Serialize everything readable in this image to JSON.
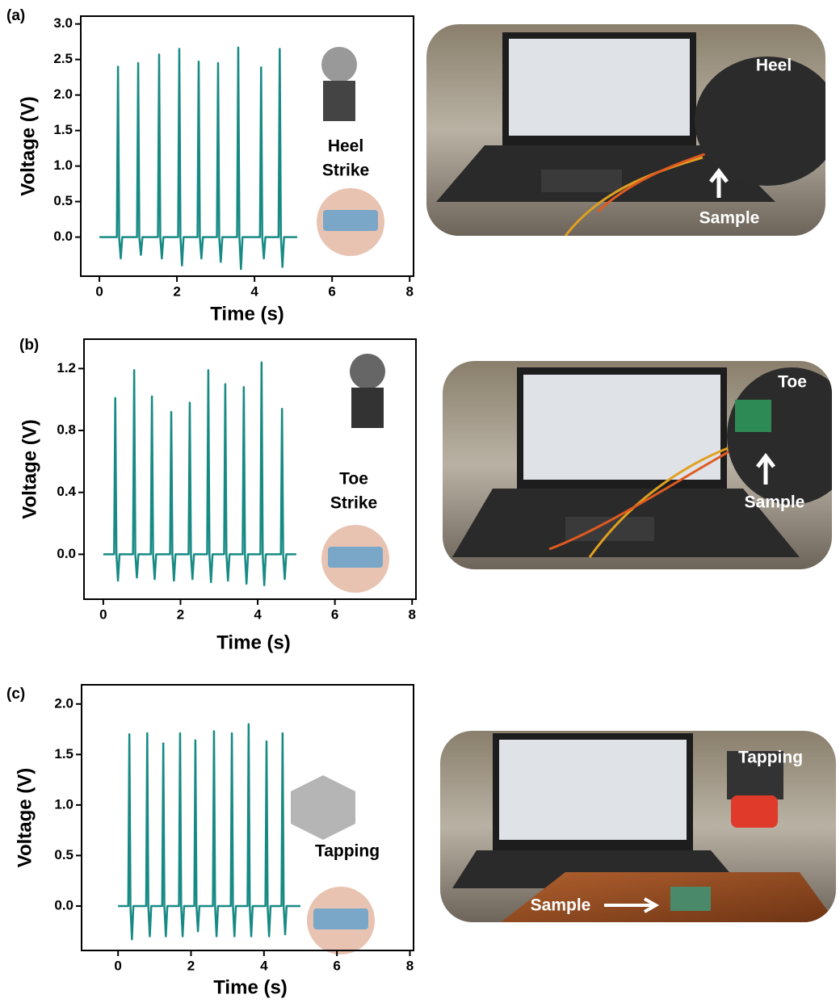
{
  "chart_data": [
    {
      "type": "line",
      "panel_label": "(a)",
      "x_label": "Time (s)",
      "y_label": "Voltage (V)",
      "annotation": [
        "Heel",
        "Strike"
      ],
      "photo_labels": [
        "Heel",
        "Sample"
      ],
      "xlim": [
        -0.48,
        8.1
      ],
      "ylim": [
        -0.55,
        3.11
      ],
      "xticks": [
        0,
        2,
        4,
        6,
        8
      ],
      "yticks": [
        {
          "value": 0,
          "label": "0.0"
        },
        {
          "value": 0.5,
          "label": "0.5"
        },
        {
          "value": 1,
          "label": "1.0"
        },
        {
          "value": 1.5,
          "label": "1.5"
        },
        {
          "value": 2,
          "label": "2.0"
        },
        {
          "value": 2.5,
          "label": "2.5"
        },
        {
          "value": 3,
          "label": "3.0"
        }
      ],
      "series": [
        {
          "color": "#178a84",
          "x": [
            0,
            0.45,
            0.48,
            0.51,
            0.55,
            0.59,
            0.97,
            1.0,
            1.03,
            1.07,
            1.11,
            1.51,
            1.54,
            1.57,
            1.61,
            1.65,
            2.03,
            2.06,
            2.09,
            2.13,
            2.17,
            2.53,
            2.56,
            2.59,
            2.63,
            2.67,
            3.03,
            3.06,
            3.09,
            3.13,
            3.17,
            3.55,
            3.58,
            3.61,
            3.65,
            3.69,
            4.14,
            4.17,
            4.2,
            4.24,
            4.28,
            4.62,
            4.65,
            4.68,
            4.72,
            4.76,
            5.1
          ],
          "values": [
            0,
            0,
            2.4,
            0,
            -0.3,
            0,
            0,
            2.45,
            0,
            -0.25,
            0,
            0,
            2.57,
            0,
            -0.3,
            0,
            0,
            2.65,
            0,
            -0.4,
            0,
            0,
            2.47,
            0,
            -0.3,
            0,
            0,
            2.45,
            0,
            -0.35,
            0,
            0,
            2.67,
            0,
            -0.45,
            0,
            0,
            2.39,
            0,
            -0.3,
            0,
            0,
            2.65,
            0,
            -0.42,
            0,
            0
          ]
        }
      ]
    },
    {
      "type": "line",
      "panel_label": "(b)",
      "x_label": "Time (s)",
      "y_label": "Voltage (V)",
      "annotation": [
        "Toe",
        "Strike"
      ],
      "photo_labels": [
        "Toe",
        "Sample"
      ],
      "xlim": [
        -0.5,
        8.1
      ],
      "ylim": [
        -0.29,
        1.39
      ],
      "xticks": [
        0,
        2,
        4,
        6,
        8
      ],
      "yticks": [
        {
          "value": 0,
          "label": "0.0"
        },
        {
          "value": 0.4,
          "label": "0.4"
        },
        {
          "value": 0.8,
          "label": "0.8"
        },
        {
          "value": 1.2,
          "label": "1.2"
        }
      ],
      "series": [
        {
          "color": "#178a84",
          "x": [
            0,
            0.28,
            0.31,
            0.34,
            0.38,
            0.42,
            0.77,
            0.8,
            0.83,
            0.87,
            0.91,
            1.23,
            1.26,
            1.29,
            1.33,
            1.37,
            1.73,
            1.76,
            1.79,
            1.83,
            1.87,
            2.21,
            2.24,
            2.27,
            2.31,
            2.35,
            2.69,
            2.72,
            2.75,
            2.79,
            2.83,
            3.13,
            3.16,
            3.19,
            3.23,
            3.27,
            3.61,
            3.64,
            3.67,
            3.71,
            3.75,
            4.07,
            4.1,
            4.13,
            4.17,
            4.21,
            4.6,
            4.63,
            4.66,
            4.7,
            4.74,
            5.0
          ],
          "values": [
            0,
            0,
            1.01,
            0,
            -0.17,
            0,
            0,
            1.19,
            0,
            -0.15,
            0,
            0,
            1.02,
            0,
            -0.16,
            0,
            0,
            0.92,
            0,
            -0.17,
            0,
            0,
            0.98,
            0,
            -0.16,
            0,
            0,
            1.19,
            0,
            -0.18,
            0,
            0,
            1.1,
            0,
            -0.17,
            0,
            0,
            1.08,
            0,
            -0.19,
            0,
            0,
            1.24,
            0,
            -0.2,
            0,
            0,
            0.94,
            0,
            -0.16,
            0,
            0
          ]
        }
      ]
    },
    {
      "type": "line",
      "panel_label": "(c)",
      "x_label": "Time (s)",
      "y_label": "Voltage (V)",
      "annotation": [
        "Tapping"
      ],
      "photo_labels": [
        "Tapping",
        "Sample"
      ],
      "xlim": [
        -1.0,
        8.1
      ],
      "ylim": [
        -0.44,
        2.19
      ],
      "xticks": [
        0,
        2,
        4,
        6,
        8
      ],
      "yticks": [
        {
          "value": 0,
          "label": "0.0"
        },
        {
          "value": 0.5,
          "label": "0.5"
        },
        {
          "value": 1,
          "label": "1.0"
        },
        {
          "value": 1.5,
          "label": "1.5"
        },
        {
          "value": 2,
          "label": "2.0"
        }
      ],
      "series": [
        {
          "color": "#178a84",
          "x": [
            0,
            0.28,
            0.31,
            0.34,
            0.38,
            0.42,
            0.77,
            0.8,
            0.83,
            0.87,
            0.91,
            1.21,
            1.24,
            1.27,
            1.31,
            1.35,
            1.67,
            1.7,
            1.73,
            1.77,
            1.81,
            2.09,
            2.12,
            2.15,
            2.19,
            2.23,
            2.6,
            2.63,
            2.66,
            2.7,
            2.74,
            3.09,
            3.12,
            3.15,
            3.19,
            3.23,
            3.55,
            3.58,
            3.61,
            3.65,
            3.69,
            4.04,
            4.07,
            4.1,
            4.14,
            4.18,
            4.48,
            4.51,
            4.54,
            4.58,
            4.62,
            5.0
          ],
          "values": [
            0,
            0,
            1.7,
            0,
            -0.33,
            0,
            0,
            1.71,
            0,
            -0.3,
            0,
            0,
            1.61,
            0,
            -0.3,
            0,
            0,
            1.71,
            0,
            -0.3,
            0,
            0,
            1.64,
            0,
            -0.25,
            0,
            0,
            1.73,
            0,
            -0.3,
            0,
            0,
            1.71,
            0,
            -0.3,
            0,
            0,
            1.8,
            0,
            -0.3,
            0,
            0,
            1.63,
            0,
            -0.3,
            0,
            0,
            1.71,
            0,
            -0.28,
            0,
            0
          ]
        }
      ]
    }
  ]
}
